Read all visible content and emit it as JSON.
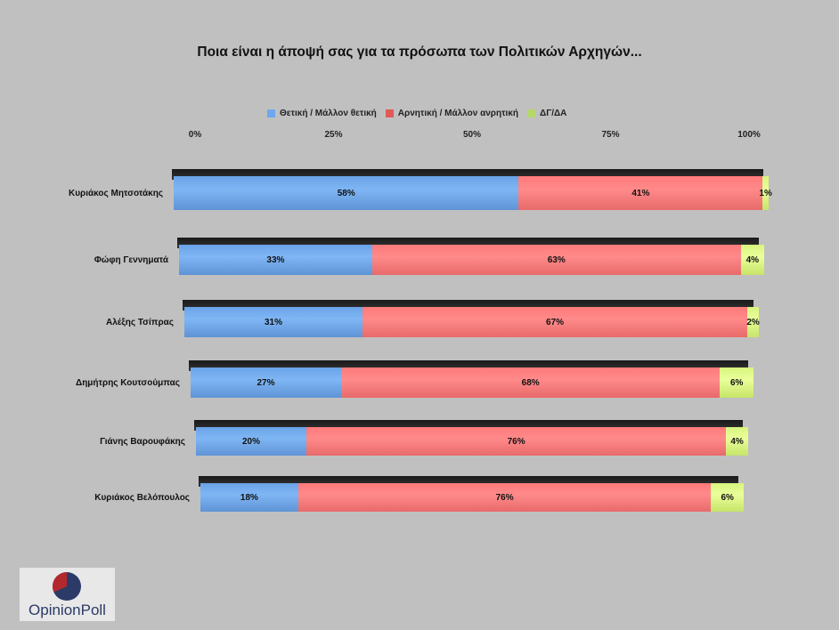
{
  "chart_data": {
    "type": "bar",
    "orientation": "horizontal",
    "stacked": true,
    "title": "Ποια είναι η άποψή σας για τα πρόσωπα των Πολιτικών Αρχηγών...",
    "categories": [
      "Κυριάκος Μητσοτάκης",
      "Φώφη Γεννηματά",
      "Αλέξης Τσίπρας",
      "Δημήτρης Κουτσούμπας",
      "Γιάνης Βαρουφάκης",
      "Κυριάκος Βελόπουλος"
    ],
    "series": [
      {
        "name": "Θετική / Μάλλον θετική",
        "color": "#6fa8ec",
        "values": [
          58,
          33,
          31,
          27,
          20,
          18
        ]
      },
      {
        "name": "Αρνητική / Μάλλον ανρητική",
        "color": "#ff7f7f",
        "values": [
          41,
          63,
          67,
          68,
          76,
          76
        ]
      },
      {
        "name": "ΔΓ/ΔΑ",
        "color": "#dcf782",
        "values": [
          1,
          4,
          2,
          6,
          4,
          6
        ]
      }
    ],
    "xticks": [
      "0%",
      "25%",
      "50%",
      "75%",
      "100%"
    ],
    "xlim": [
      0,
      100
    ],
    "legend_position": "top",
    "value_suffix": "%"
  },
  "logo": {
    "text": "OpinionPoll"
  }
}
